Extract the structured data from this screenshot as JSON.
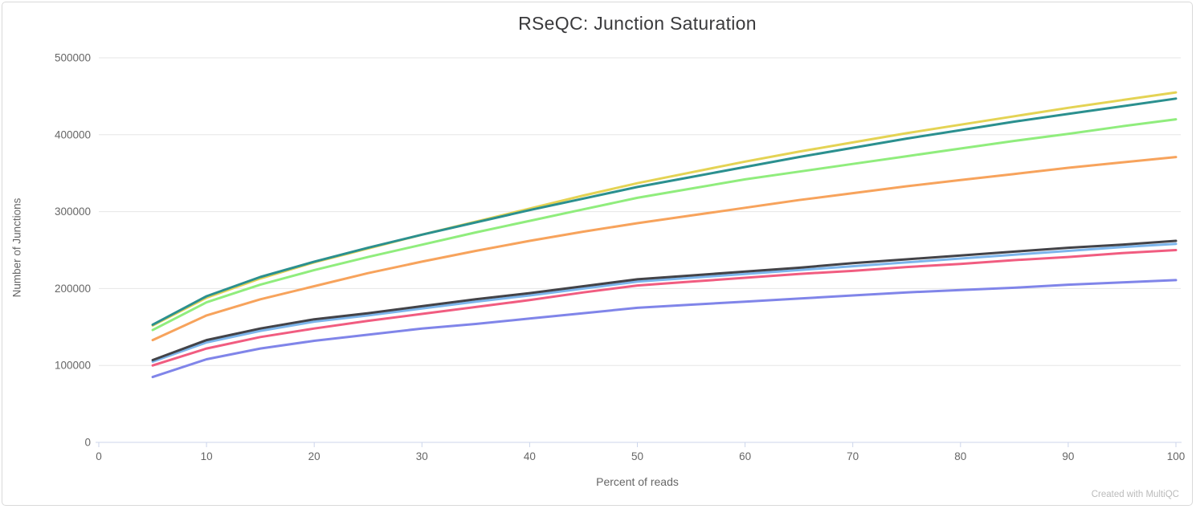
{
  "page": {
    "credit": "Created with MultiQC"
  },
  "chart_data": {
    "type": "line",
    "title": "RSeQC: Junction Saturation",
    "xlabel": "Percent of reads",
    "ylabel": "Number of Junctions",
    "xlim": [
      0,
      100
    ],
    "ylim": [
      0,
      500000
    ],
    "x_ticks": [
      0,
      10,
      20,
      30,
      40,
      50,
      60,
      70,
      80,
      90,
      100
    ],
    "y_ticks": [
      0,
      100000,
      200000,
      300000,
      400000,
      500000
    ],
    "grid": "horizontal-only",
    "legend": "none",
    "colors": {
      "grid": "#e6e6e6",
      "axis_line": "#ccd6eb",
      "tick_text": "#666666",
      "title_text": "#3a3a3c",
      "credit_text": "#bbbbbb"
    },
    "x": [
      5,
      10,
      15,
      20,
      25,
      30,
      35,
      40,
      45,
      50,
      55,
      60,
      65,
      70,
      75,
      80,
      85,
      90,
      95,
      100
    ],
    "series": [
      {
        "name": "series-1-light-blue",
        "color": "#7cb5ec",
        "values": [
          105000,
          130000,
          145000,
          157000,
          165000,
          174000,
          183000,
          191000,
          200000,
          209000,
          214000,
          219000,
          224000,
          229000,
          234000,
          239000,
          244000,
          249000,
          254000,
          258000
        ]
      },
      {
        "name": "series-2-dark-grey",
        "color": "#434348",
        "values": [
          107000,
          133000,
          148000,
          160000,
          168000,
          177000,
          186000,
          194000,
          203000,
          212000,
          217000,
          222000,
          227000,
          233000,
          238000,
          243000,
          248000,
          253000,
          257000,
          262000
        ]
      },
      {
        "name": "series-3-green",
        "color": "#90ed7d",
        "values": [
          146000,
          182000,
          205000,
          224000,
          241000,
          257000,
          273000,
          288000,
          303000,
          318000,
          330000,
          342000,
          352000,
          362000,
          372000,
          382000,
          392000,
          401000,
          411000,
          420000
        ]
      },
      {
        "name": "series-4-orange",
        "color": "#f7a35c",
        "values": [
          133000,
          165000,
          186000,
          203000,
          220000,
          235000,
          249000,
          262000,
          274000,
          285000,
          295000,
          305000,
          315000,
          324000,
          333000,
          341000,
          349000,
          357000,
          364000,
          371000
        ]
      },
      {
        "name": "series-5-purple",
        "color": "#8085e9",
        "values": [
          85000,
          108000,
          122000,
          132000,
          140000,
          148000,
          154000,
          161000,
          168000,
          175000,
          179000,
          183000,
          187000,
          191000,
          195000,
          198000,
          201000,
          205000,
          208000,
          211000
        ]
      },
      {
        "name": "series-6-pink",
        "color": "#f15c80",
        "values": [
          100000,
          122000,
          137000,
          148000,
          158000,
          167000,
          176000,
          185000,
          195000,
          204000,
          209000,
          214000,
          219000,
          223000,
          228000,
          232000,
          237000,
          241000,
          246000,
          250000
        ]
      },
      {
        "name": "series-7-yellow",
        "color": "#e4d354",
        "values": [
          152000,
          188000,
          213000,
          234000,
          252000,
          270000,
          287000,
          304000,
          321000,
          337000,
          351000,
          365000,
          378000,
          390000,
          402000,
          413000,
          424000,
          435000,
          445000,
          455000
        ]
      },
      {
        "name": "series-8-teal",
        "color": "#2b908f",
        "values": [
          153000,
          190000,
          215000,
          235000,
          253000,
          270000,
          286000,
          302000,
          317000,
          332000,
          345000,
          358000,
          371000,
          383000,
          395000,
          406000,
          417000,
          427000,
          437000,
          447000
        ]
      }
    ]
  }
}
